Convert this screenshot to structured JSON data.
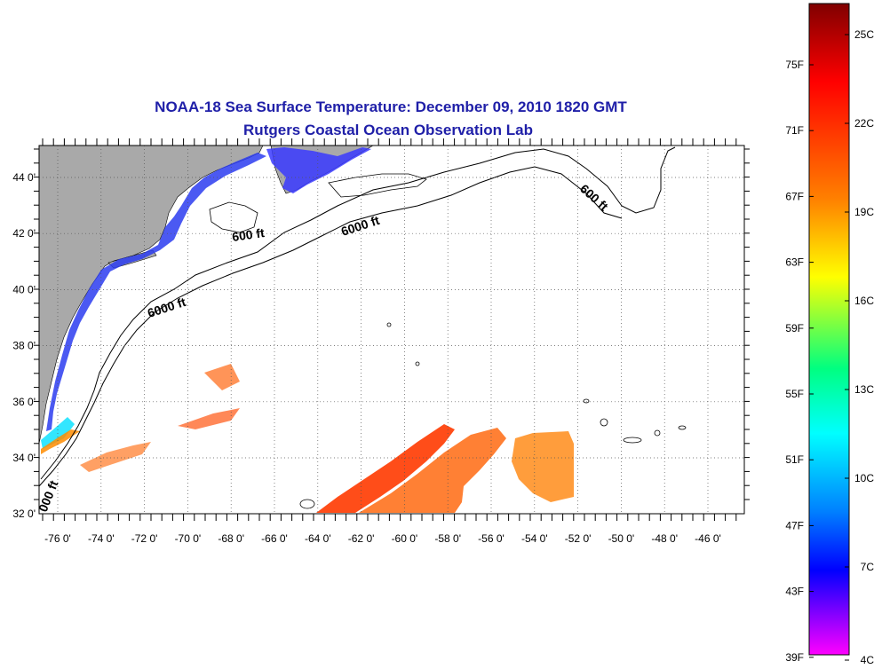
{
  "map": {
    "title_line1": "NOAA-18 Sea Surface Temperature:  December 09, 2010 1820 GMT",
    "title_line2": "Rutgers Coastal Ocean Observation Lab",
    "lon_labels": [
      "-76 0'",
      "-74 0'",
      "-72 0'",
      "-70 0'",
      "-68 0'",
      "-66 0'",
      "-64 0'",
      "-62 0'",
      "-60 0'",
      "-58 0'",
      "-56 0'",
      "-54 0'",
      "-52 0'",
      "-50 0'",
      "-48 0'",
      "-46 0'"
    ],
    "lat_labels": [
      "44 0'",
      "42 0'",
      "40 0'",
      "38 0'",
      "36 0'",
      "34 0'",
      "32 0'"
    ],
    "contour_labels": [
      "600 ft",
      "6000 ft",
      "6000 ft",
      "600 ft",
      "000 ft"
    ],
    "colors": {
      "land": "#a9a9a9",
      "ocean": "#ffffff",
      "frame": "#000000",
      "title": "#1f1fa8"
    }
  },
  "colorbar": {
    "fahrenheit_labels": [
      "75F",
      "71F",
      "67F",
      "63F",
      "59F",
      "55F",
      "51F",
      "47F",
      "43F",
      "39F"
    ],
    "celsius_labels": [
      "25C",
      "22C",
      "19C",
      "16C",
      "13C",
      "10C",
      "7C",
      "4C"
    ],
    "gradient_colors": [
      "#800000",
      "#ff0000",
      "#ff8000",
      "#ffff00",
      "#00ff80",
      "#00ffff",
      "#0080ff",
      "#0000ff",
      "#ff00ff"
    ]
  }
}
